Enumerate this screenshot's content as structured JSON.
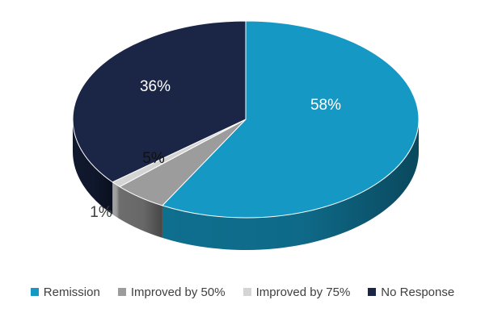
{
  "chart_data": {
    "type": "pie",
    "title": "",
    "categories": [
      "Remission",
      "Improved by 50%",
      "Improved by 75%",
      "No Response"
    ],
    "values": [
      58,
      5,
      1,
      36
    ],
    "labels": [
      "58%",
      "5%",
      "1%",
      "36%"
    ],
    "colors": [
      "#1599c4",
      "#9c9c9c",
      "#d4d4d4",
      "#1b2646"
    ],
    "side_colors": [
      "#0f6f8f",
      "#6d6d6d",
      "#a3a3a3",
      "#10182e"
    ],
    "label_colors": [
      "#ffffff",
      "#111111",
      "#404040",
      "#ffffff"
    ],
    "legend_position": "bottom",
    "style": "3d"
  }
}
